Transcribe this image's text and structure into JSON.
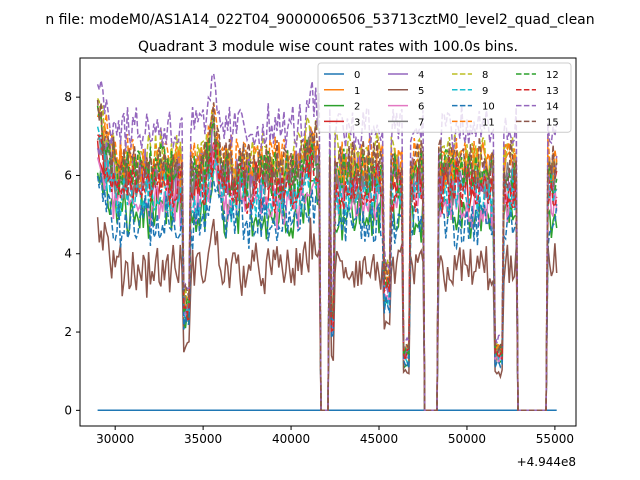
{
  "chart_data": {
    "type": "line",
    "suptitle": "n file: modeM0/AS1A14_022T04_9000006506_53713cztM0_level2_quad_clean",
    "title": "Quadrant 3 module wise count rates with 100.0s bins.",
    "xlabel": "",
    "ylabel": "",
    "x_offset_label": "+4.944e8",
    "xlim": [
      28000,
      56200
    ],
    "ylim": [
      -0.4,
      9.0
    ],
    "x_range": [
      29000,
      55100
    ],
    "x_ticks": [
      30000,
      35000,
      40000,
      45000,
      50000,
      55000
    ],
    "x_tick_labels": [
      "30000",
      "35000",
      "40000",
      "45000",
      "50000",
      "55000"
    ],
    "y_ticks": [
      0,
      2,
      4,
      6,
      8
    ],
    "y_tick_labels": [
      "0",
      "2",
      "4",
      "6",
      "8"
    ],
    "dips": [
      {
        "start": 33900,
        "end": 34200,
        "depth": 0.55
      },
      {
        "start": 41700,
        "end": 42100,
        "depth": 1.0
      },
      {
        "start": 42250,
        "end": 42450,
        "depth": 0.6
      },
      {
        "start": 45300,
        "end": 45650,
        "depth": 0.45
      },
      {
        "start": 46400,
        "end": 46700,
        "depth": 0.75
      },
      {
        "start": 47600,
        "end": 48300,
        "depth": 1.0
      },
      {
        "start": 51600,
        "end": 52000,
        "depth": 0.75
      },
      {
        "start": 52900,
        "end": 54500,
        "depth": 1.0
      }
    ],
    "series": [
      {
        "name": "0",
        "color": "#1f77b4",
        "dash": "solid",
        "level": 0.0
      },
      {
        "name": "1",
        "color": "#ff7f0e",
        "dash": "solid",
        "level": 6.2
      },
      {
        "name": "2",
        "color": "#2ca02c",
        "dash": "solid",
        "level": 5.0
      },
      {
        "name": "3",
        "color": "#d62728",
        "dash": "solid",
        "level": 5.8
      },
      {
        "name": "4",
        "color": "#9467bd",
        "dash": "solid",
        "level": 6.0
      },
      {
        "name": "5",
        "color": "#8c564b",
        "dash": "solid",
        "level": 3.6
      },
      {
        "name": "6",
        "color": "#e377c2",
        "dash": "solid",
        "level": 5.3
      },
      {
        "name": "7",
        "color": "#7f7f7f",
        "dash": "solid",
        "level": 5.9
      },
      {
        "name": "8",
        "color": "#bcbd22",
        "dash": "dashed",
        "level": 6.5
      },
      {
        "name": "9",
        "color": "#17becf",
        "dash": "dashed",
        "level": 5.5
      },
      {
        "name": "10",
        "color": "#1f77b4",
        "dash": "dashed",
        "level": 4.8
      },
      {
        "name": "11",
        "color": "#ff7f0e",
        "dash": "dashed",
        "level": 6.4
      },
      {
        "name": "12",
        "color": "#2ca02c",
        "dash": "dashed",
        "level": 6.1
      },
      {
        "name": "13",
        "color": "#d62728",
        "dash": "dashed",
        "level": 5.7
      },
      {
        "name": "14",
        "color": "#9467bd",
        "dash": "dashed",
        "level": 7.2
      },
      {
        "name": "15",
        "color": "#8c564b",
        "dash": "dashed",
        "level": 6.3
      }
    ],
    "legend_location": "top-right",
    "legend_columns": 4
  }
}
